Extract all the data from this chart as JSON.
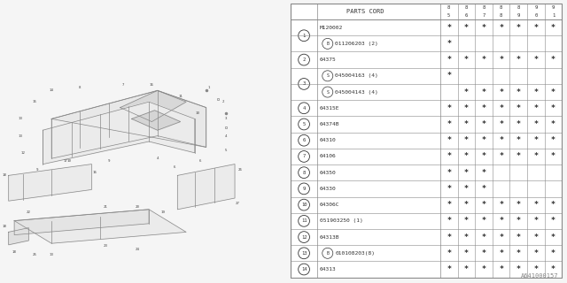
{
  "watermark": "A641000157",
  "col_years": [
    "85",
    "86",
    "87",
    "88",
    "89",
    "90",
    "91"
  ],
  "rows": [
    {
      "num": "1",
      "prefix": "",
      "code": "M120002",
      "marks": [
        1,
        1,
        1,
        1,
        1,
        1,
        1
      ],
      "span_num": true
    },
    {
      "num": "1",
      "prefix": "B",
      "code": "011206203 (2)",
      "marks": [
        1,
        0,
        0,
        0,
        0,
        0,
        0
      ],
      "span_num": false
    },
    {
      "num": "2",
      "prefix": "",
      "code": "64375",
      "marks": [
        1,
        1,
        1,
        1,
        1,
        1,
        1
      ],
      "span_num": true
    },
    {
      "num": "3",
      "prefix": "S",
      "code": "045004163 (4)",
      "marks": [
        1,
        0,
        0,
        0,
        0,
        0,
        0
      ],
      "span_num": true
    },
    {
      "num": "3",
      "prefix": "S",
      "code": "045004143 (4)",
      "marks": [
        0,
        1,
        1,
        1,
        1,
        1,
        1
      ],
      "span_num": false
    },
    {
      "num": "4",
      "prefix": "",
      "code": "64315E",
      "marks": [
        1,
        1,
        1,
        1,
        1,
        1,
        1
      ],
      "span_num": true
    },
    {
      "num": "5",
      "prefix": "",
      "code": "64374B",
      "marks": [
        1,
        1,
        1,
        1,
        1,
        1,
        1
      ],
      "span_num": true
    },
    {
      "num": "6",
      "prefix": "",
      "code": "64310",
      "marks": [
        1,
        1,
        1,
        1,
        1,
        1,
        1
      ],
      "span_num": true
    },
    {
      "num": "7",
      "prefix": "",
      "code": "64106",
      "marks": [
        1,
        1,
        1,
        1,
        1,
        1,
        1
      ],
      "span_num": true
    },
    {
      "num": "8",
      "prefix": "",
      "code": "64350",
      "marks": [
        1,
        1,
        1,
        0,
        0,
        0,
        0
      ],
      "span_num": true
    },
    {
      "num": "9",
      "prefix": "",
      "code": "64330",
      "marks": [
        1,
        1,
        1,
        0,
        0,
        0,
        0
      ],
      "span_num": true
    },
    {
      "num": "10",
      "prefix": "",
      "code": "64306C",
      "marks": [
        1,
        1,
        1,
        1,
        1,
        1,
        1
      ],
      "span_num": true
    },
    {
      "num": "11",
      "prefix": "",
      "code": "051903250 (1)",
      "marks": [
        1,
        1,
        1,
        1,
        1,
        1,
        1
      ],
      "span_num": true
    },
    {
      "num": "12",
      "prefix": "",
      "code": "64313B",
      "marks": [
        1,
        1,
        1,
        1,
        1,
        1,
        1
      ],
      "span_num": true
    },
    {
      "num": "13",
      "prefix": "B",
      "code": "010108203(8)",
      "marks": [
        1,
        1,
        1,
        1,
        1,
        1,
        1
      ],
      "span_num": true
    },
    {
      "num": "14",
      "prefix": "",
      "code": "64313",
      "marks": [
        1,
        1,
        1,
        1,
        1,
        1,
        1
      ],
      "span_num": true
    }
  ],
  "bg_color": "#f5f5f5",
  "line_color": "#999999",
  "text_color": "#333333",
  "draw_color": "#888888",
  "table_bg": "#ffffff"
}
